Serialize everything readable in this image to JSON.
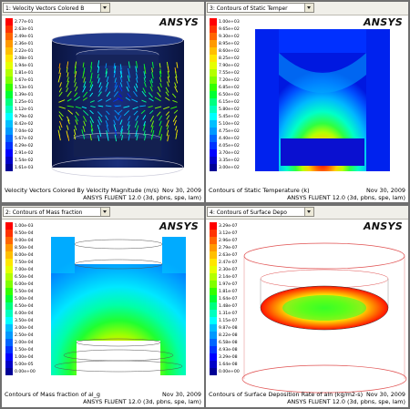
{
  "logo_text": "ANSYS",
  "panels": [
    {
      "dropdown": "1: Velocity Vectors Colored B",
      "caption": "Velocity Vectors Colored By Velocity Magnitude (m/s)",
      "date": "Nov 30, 2009",
      "solver": "ANSYS FLUENT 12.0 (3d, pbns, spe, lam)",
      "scale": [
        "2.77e-01",
        "2.63e-01",
        "2.49e-01",
        "2.36e-01",
        "2.22e-01",
        "2.08e-01",
        "1.94e-01",
        "1.81e-01",
        "1.67e-01",
        "1.53e-01",
        "1.39e-01",
        "1.25e-01",
        "1.12e-01",
        "9.79e-02",
        "8.42e-02",
        "7.04e-02",
        "5.67e-02",
        "4.29e-02",
        "2.91e-02",
        "1.54e-02",
        "1.61e-03"
      ]
    },
    {
      "dropdown": "3: Contours of Static Temper",
      "caption": "Contours of Static Temperature (k)",
      "date": "Nov 30, 2009",
      "solver": "ANSYS FLUENT 12.0 (3d, pbns, spe, lam)",
      "scale": [
        "1.00e+03",
        "9.65e+02",
        "9.30e+02",
        "8.95e+02",
        "8.60e+02",
        "8.25e+02",
        "7.90e+02",
        "7.55e+02",
        "7.20e+02",
        "6.85e+02",
        "6.50e+02",
        "6.15e+02",
        "5.80e+02",
        "5.45e+02",
        "5.10e+02",
        "4.75e+02",
        "4.40e+02",
        "4.05e+02",
        "3.70e+02",
        "3.35e+02",
        "3.00e+02"
      ]
    },
    {
      "dropdown": "2: Contours of Mass fraction",
      "caption": "Contours of Mass fraction of al_g",
      "date": "Nov 30, 2009",
      "solver": "ANSYS FLUENT 12.0 (3d, pbns, spe, lam)",
      "scale": [
        "1.00e-03",
        "9.50e-04",
        "9.00e-04",
        "8.50e-04",
        "8.00e-04",
        "7.50e-04",
        "7.00e-04",
        "6.50e-04",
        "6.00e-04",
        "5.50e-04",
        "5.00e-04",
        "4.50e-04",
        "4.00e-04",
        "3.50e-04",
        "3.00e-04",
        "2.50e-04",
        "2.00e-04",
        "1.50e-04",
        "1.00e-04",
        "5.00e-05",
        "0.00e+00"
      ]
    },
    {
      "dropdown": "4: Contours of Surface Depo",
      "caption": "Contours of Surface Deposition Rate of aln (kg/m2-s)",
      "date": "Nov 30, 2009",
      "solver": "ANSYS FLUENT 12.0 (3d, pbns, spe, lam)",
      "scale": [
        "3.29e-07",
        "3.12e-07",
        "2.96e-07",
        "2.79e-07",
        "2.63e-07",
        "2.47e-07",
        "2.30e-07",
        "2.14e-07",
        "1.97e-07",
        "1.81e-07",
        "1.64e-07",
        "1.48e-07",
        "1.31e-07",
        "1.15e-07",
        "9.87e-08",
        "8.22e-08",
        "6.58e-08",
        "4.93e-08",
        "3.29e-08",
        "1.64e-08",
        "0.00e+00"
      ]
    }
  ],
  "colormap": [
    "#ff0000",
    "#ff3300",
    "#ff6600",
    "#ff9900",
    "#ffbf00",
    "#ffe600",
    "#e6ff00",
    "#b3ff00",
    "#80ff00",
    "#33ff00",
    "#00ff33",
    "#00ff80",
    "#00ffbf",
    "#00ffff",
    "#00bfff",
    "#0099ff",
    "#0066ff",
    "#0033ff",
    "#0000ff",
    "#0000c8",
    "#000096"
  ]
}
